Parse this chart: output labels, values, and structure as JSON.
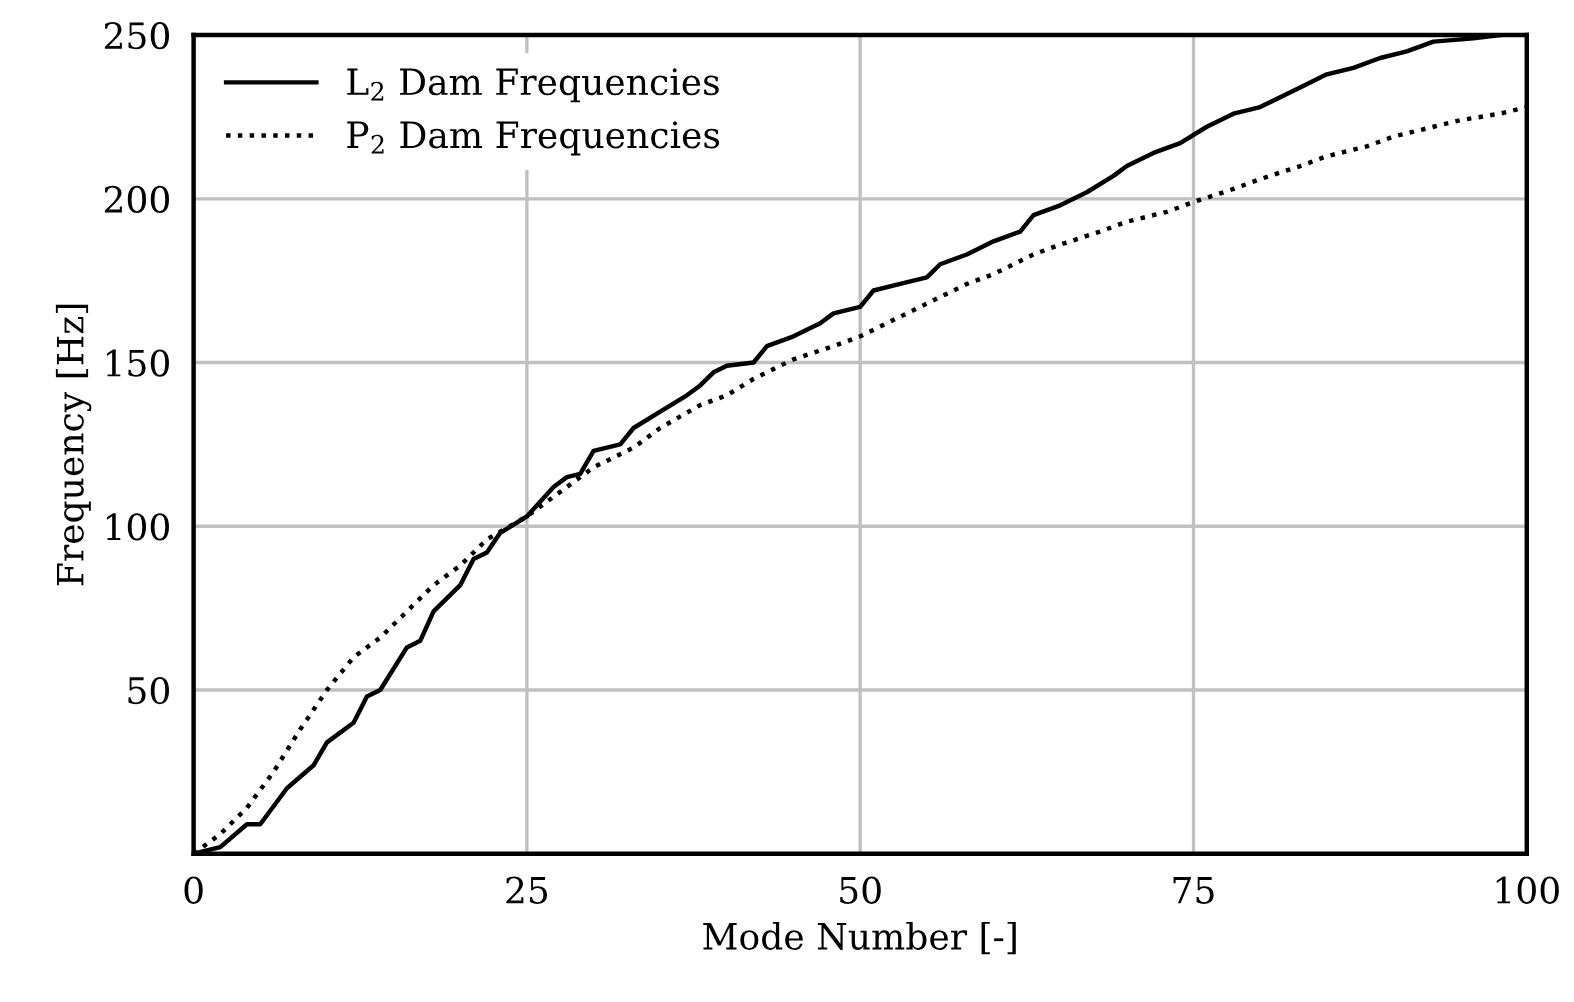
{
  "chart_data": {
    "type": "line",
    "xlabel": "Mode Number [-]",
    "ylabel": "Frequency [Hz]",
    "xlim": [
      0,
      100
    ],
    "ylim": [
      0,
      250
    ],
    "xticks": [
      0,
      25,
      50,
      75,
      100
    ],
    "yticks": [
      50,
      100,
      150,
      200,
      250
    ],
    "grid": true,
    "legend": "top left",
    "marker": "none",
    "series": [
      {
        "name": "L$_{2}$ Dam Frequencies",
        "color": "#000000",
        "line_style": "solid",
        "x": [
          0,
          2,
          4,
          5,
          7,
          9,
          10,
          12,
          13,
          14,
          16,
          17,
          18,
          20,
          21,
          22,
          23,
          25,
          27,
          28,
          29,
          30,
          32,
          33,
          35,
          37,
          38,
          39,
          40,
          42,
          43,
          45,
          47,
          48,
          50,
          51,
          53,
          55,
          56,
          58,
          60,
          62,
          63,
          65,
          67,
          69,
          70,
          72,
          74,
          76,
          78,
          80,
          82,
          83,
          85,
          87,
          89,
          91,
          93,
          96,
          98
        ],
        "values": [
          0,
          2,
          9,
          9,
          20,
          27,
          34,
          40,
          48,
          50,
          63,
          65,
          74,
          82,
          90,
          92,
          98,
          103,
          112,
          115,
          116,
          123,
          125,
          130,
          135,
          140,
          143,
          147,
          149,
          150,
          155,
          158,
          162,
          165,
          167,
          172,
          174,
          176,
          180,
          183,
          187,
          190,
          195,
          198,
          202,
          207,
          210,
          214,
          217,
          222,
          226,
          228,
          232,
          234,
          238,
          240,
          243,
          245,
          248,
          249,
          250
        ]
      },
      {
        "name": "P$_{2}$ Dam Frequencies",
        "color": "#000000",
        "line_style": "dotted",
        "x": [
          0,
          2,
          4,
          6,
          8,
          10,
          12,
          14,
          16,
          18,
          20,
          22,
          25,
          28,
          30,
          33,
          35,
          38,
          40,
          42,
          45,
          48,
          50,
          53,
          55,
          58,
          60,
          63,
          65,
          68,
          70,
          73,
          75,
          78,
          80,
          83,
          85,
          88,
          90,
          93,
          95,
          98,
          100
        ],
        "values": [
          0,
          6,
          14,
          25,
          38,
          50,
          60,
          66,
          74,
          82,
          88,
          96,
          103,
          112,
          118,
          124,
          130,
          137,
          140,
          145,
          151,
          155,
          158,
          164,
          168,
          174,
          177,
          183,
          186,
          190,
          193,
          196,
          199,
          203,
          206,
          210,
          213,
          216,
          219,
          222,
          224,
          226,
          228
        ]
      }
    ]
  }
}
